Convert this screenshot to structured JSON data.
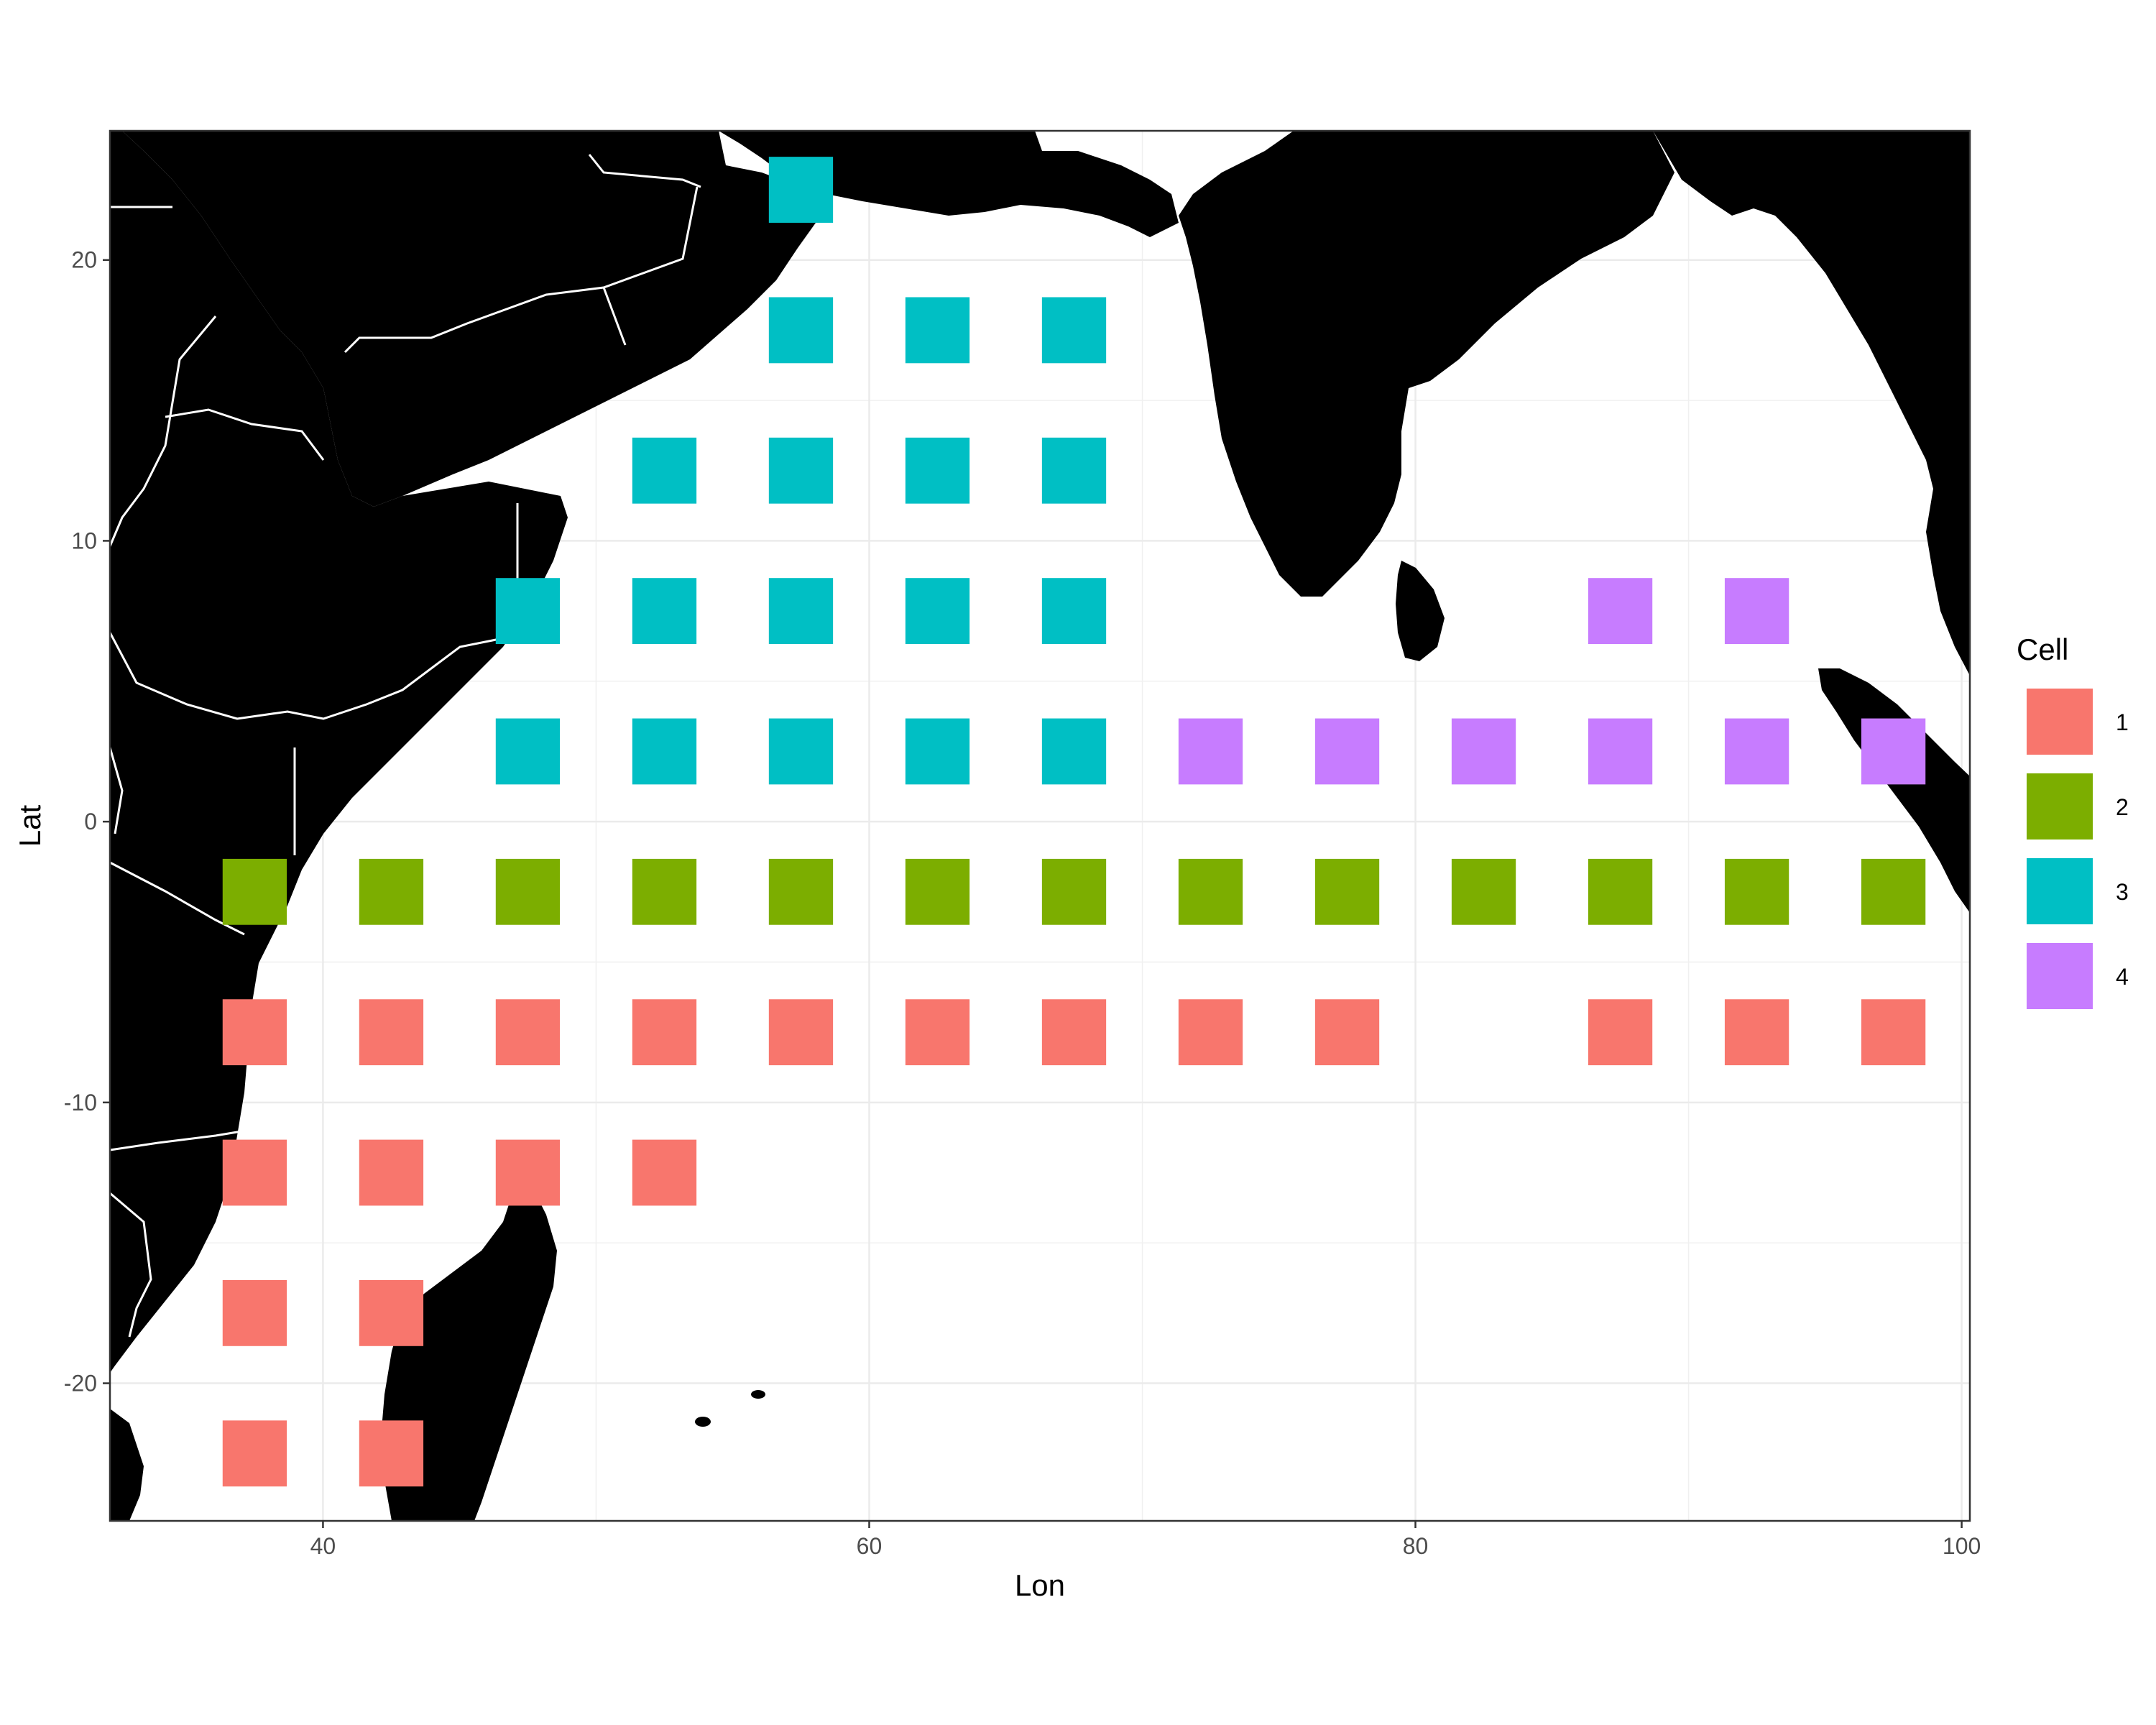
{
  "chart_data": {
    "type": "heatmap",
    "title": "",
    "xlabel": "Lon",
    "ylabel": "Lat",
    "xlim": [
      32.2,
      100.3
    ],
    "ylim": [
      -24.9,
      24.6
    ],
    "x_ticks": [
      40,
      60,
      80,
      100
    ],
    "y_ticks": [
      20,
      10,
      0,
      -10,
      -20
    ],
    "x_tick_labels": [
      "40",
      "60",
      "80",
      "100"
    ],
    "y_tick_labels": [
      "20",
      "10",
      "0",
      "-10",
      "-20"
    ],
    "grid": true,
    "background": "coastline map (land in black, country borders in white)",
    "cell_size_deg": 2.35,
    "legend": {
      "title": "Cell",
      "position": "right",
      "items": [
        {
          "label": "1",
          "color": "#F8766D"
        },
        {
          "label": "2",
          "color": "#7CAE00"
        },
        {
          "label": "3",
          "color": "#00BFC4"
        },
        {
          "label": "4",
          "color": "#C77CFF"
        }
      ]
    },
    "cells": [
      {
        "lon": 57.5,
        "lat": 22.5,
        "cell": 3
      },
      {
        "lon": 57.5,
        "lat": 17.5,
        "cell": 3
      },
      {
        "lon": 62.5,
        "lat": 17.5,
        "cell": 3
      },
      {
        "lon": 67.5,
        "lat": 17.5,
        "cell": 3
      },
      {
        "lon": 52.5,
        "lat": 12.5,
        "cell": 3
      },
      {
        "lon": 57.5,
        "lat": 12.5,
        "cell": 3
      },
      {
        "lon": 62.5,
        "lat": 12.5,
        "cell": 3
      },
      {
        "lon": 67.5,
        "lat": 12.5,
        "cell": 3
      },
      {
        "lon": 47.5,
        "lat": 7.5,
        "cell": 3
      },
      {
        "lon": 52.5,
        "lat": 7.5,
        "cell": 3
      },
      {
        "lon": 57.5,
        "lat": 7.5,
        "cell": 3
      },
      {
        "lon": 62.5,
        "lat": 7.5,
        "cell": 3
      },
      {
        "lon": 67.5,
        "lat": 7.5,
        "cell": 3
      },
      {
        "lon": 87.5,
        "lat": 7.5,
        "cell": 4
      },
      {
        "lon": 92.5,
        "lat": 7.5,
        "cell": 4
      },
      {
        "lon": 47.5,
        "lat": 2.5,
        "cell": 3
      },
      {
        "lon": 52.5,
        "lat": 2.5,
        "cell": 3
      },
      {
        "lon": 57.5,
        "lat": 2.5,
        "cell": 3
      },
      {
        "lon": 62.5,
        "lat": 2.5,
        "cell": 3
      },
      {
        "lon": 67.5,
        "lat": 2.5,
        "cell": 3
      },
      {
        "lon": 72.5,
        "lat": 2.5,
        "cell": 4
      },
      {
        "lon": 77.5,
        "lat": 2.5,
        "cell": 4
      },
      {
        "lon": 82.5,
        "lat": 2.5,
        "cell": 4
      },
      {
        "lon": 87.5,
        "lat": 2.5,
        "cell": 4
      },
      {
        "lon": 92.5,
        "lat": 2.5,
        "cell": 4
      },
      {
        "lon": 97.5,
        "lat": 2.5,
        "cell": 4
      },
      {
        "lon": 37.5,
        "lat": -2.5,
        "cell": 2
      },
      {
        "lon": 42.5,
        "lat": -2.5,
        "cell": 2
      },
      {
        "lon": 47.5,
        "lat": -2.5,
        "cell": 2
      },
      {
        "lon": 52.5,
        "lat": -2.5,
        "cell": 2
      },
      {
        "lon": 57.5,
        "lat": -2.5,
        "cell": 2
      },
      {
        "lon": 62.5,
        "lat": -2.5,
        "cell": 2
      },
      {
        "lon": 67.5,
        "lat": -2.5,
        "cell": 2
      },
      {
        "lon": 72.5,
        "lat": -2.5,
        "cell": 2
      },
      {
        "lon": 77.5,
        "lat": -2.5,
        "cell": 2
      },
      {
        "lon": 82.5,
        "lat": -2.5,
        "cell": 2
      },
      {
        "lon": 87.5,
        "lat": -2.5,
        "cell": 2
      },
      {
        "lon": 92.5,
        "lat": -2.5,
        "cell": 2
      },
      {
        "lon": 97.5,
        "lat": -2.5,
        "cell": 2
      },
      {
        "lon": 37.5,
        "lat": -7.5,
        "cell": 1
      },
      {
        "lon": 42.5,
        "lat": -7.5,
        "cell": 1
      },
      {
        "lon": 47.5,
        "lat": -7.5,
        "cell": 1
      },
      {
        "lon": 52.5,
        "lat": -7.5,
        "cell": 1
      },
      {
        "lon": 57.5,
        "lat": -7.5,
        "cell": 1
      },
      {
        "lon": 62.5,
        "lat": -7.5,
        "cell": 1
      },
      {
        "lon": 67.5,
        "lat": -7.5,
        "cell": 1
      },
      {
        "lon": 72.5,
        "lat": -7.5,
        "cell": 1
      },
      {
        "lon": 77.5,
        "lat": -7.5,
        "cell": 1
      },
      {
        "lon": 87.5,
        "lat": -7.5,
        "cell": 1
      },
      {
        "lon": 92.5,
        "lat": -7.5,
        "cell": 1
      },
      {
        "lon": 97.5,
        "lat": -7.5,
        "cell": 1
      },
      {
        "lon": 37.5,
        "lat": -12.5,
        "cell": 1
      },
      {
        "lon": 42.5,
        "lat": -12.5,
        "cell": 1
      },
      {
        "lon": 47.5,
        "lat": -12.5,
        "cell": 1
      },
      {
        "lon": 52.5,
        "lat": -12.5,
        "cell": 1
      },
      {
        "lon": 37.5,
        "lat": -17.5,
        "cell": 1
      },
      {
        "lon": 42.5,
        "lat": -17.5,
        "cell": 1
      },
      {
        "lon": 37.5,
        "lat": -22.5,
        "cell": 1
      },
      {
        "lon": 42.5,
        "lat": -22.5,
        "cell": 1
      }
    ]
  }
}
